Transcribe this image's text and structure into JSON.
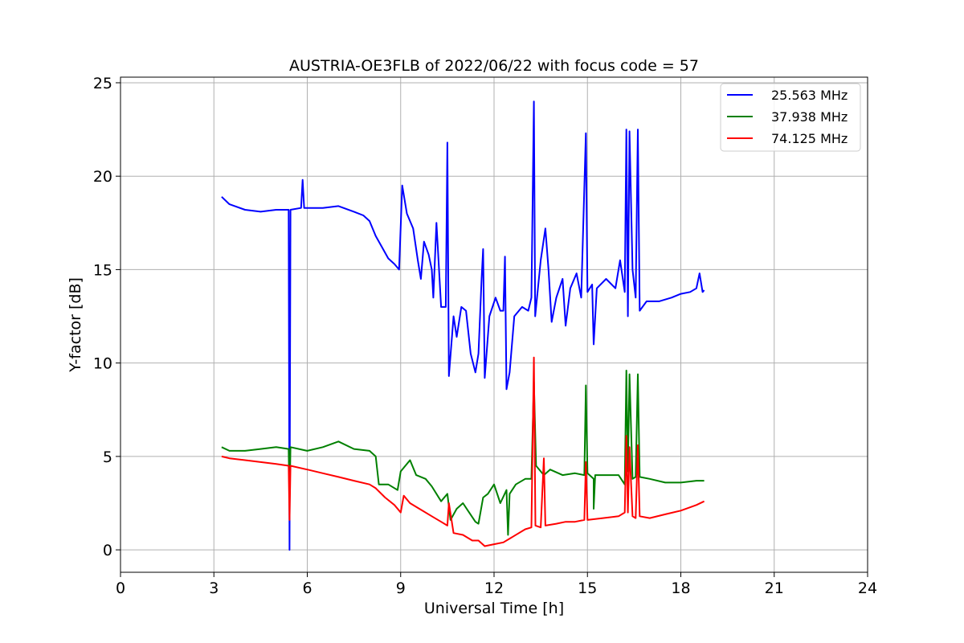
{
  "chart_data": {
    "type": "line",
    "title": "AUSTRIA-OE3FLB of 2022/06/22 with focus code = 57",
    "xlabel": "Universal Time [h]",
    "ylabel": "Y-factor [dB]",
    "xlim": [
      0,
      24
    ],
    "ylim": [
      -1.2,
      25.3
    ],
    "xticks": [
      0,
      3,
      6,
      9,
      12,
      15,
      18,
      21,
      24
    ],
    "yticks": [
      0,
      5,
      10,
      15,
      20,
      25
    ],
    "grid": true,
    "legend_position": "top-right",
    "series": [
      {
        "name": "25.563 MHz",
        "color": "#0000ff",
        "points": [
          [
            3.25,
            18.9
          ],
          [
            3.5,
            18.5
          ],
          [
            4.0,
            18.2
          ],
          [
            4.5,
            18.1
          ],
          [
            5.0,
            18.2
          ],
          [
            5.4,
            18.2
          ],
          [
            5.43,
            0.0
          ],
          [
            5.46,
            18.2
          ],
          [
            5.8,
            18.3
          ],
          [
            5.85,
            19.8
          ],
          [
            5.9,
            18.3
          ],
          [
            6.5,
            18.3
          ],
          [
            7.0,
            18.4
          ],
          [
            7.5,
            18.1
          ],
          [
            7.8,
            17.9
          ],
          [
            8.0,
            17.6
          ],
          [
            8.2,
            16.8
          ],
          [
            8.4,
            16.2
          ],
          [
            8.6,
            15.6
          ],
          [
            8.8,
            15.3
          ],
          [
            8.95,
            15.0
          ],
          [
            9.05,
            19.5
          ],
          [
            9.2,
            18.0
          ],
          [
            9.4,
            17.2
          ],
          [
            9.55,
            15.5
          ],
          [
            9.65,
            14.5
          ],
          [
            9.75,
            16.5
          ],
          [
            9.9,
            15.8
          ],
          [
            10.0,
            15.0
          ],
          [
            10.05,
            13.5
          ],
          [
            10.15,
            17.5
          ],
          [
            10.3,
            13.0
          ],
          [
            10.45,
            13.0
          ],
          [
            10.5,
            21.8
          ],
          [
            10.55,
            9.3
          ],
          [
            10.7,
            12.5
          ],
          [
            10.8,
            11.4
          ],
          [
            10.95,
            13.0
          ],
          [
            11.1,
            12.8
          ],
          [
            11.25,
            10.5
          ],
          [
            11.4,
            9.5
          ],
          [
            11.5,
            10.5
          ],
          [
            11.6,
            14.5
          ],
          [
            11.65,
            16.1
          ],
          [
            11.7,
            9.2
          ],
          [
            11.85,
            12.5
          ],
          [
            12.05,
            13.5
          ],
          [
            12.2,
            12.8
          ],
          [
            12.3,
            12.8
          ],
          [
            12.35,
            15.7
          ],
          [
            12.4,
            8.6
          ],
          [
            12.5,
            9.5
          ],
          [
            12.65,
            12.5
          ],
          [
            12.9,
            13.0
          ],
          [
            13.1,
            12.8
          ],
          [
            13.2,
            13.5
          ],
          [
            13.28,
            24.0
          ],
          [
            13.32,
            12.5
          ],
          [
            13.5,
            15.5
          ],
          [
            13.65,
            17.2
          ],
          [
            13.75,
            15.0
          ],
          [
            13.85,
            12.2
          ],
          [
            14.0,
            13.5
          ],
          [
            14.2,
            14.5
          ],
          [
            14.3,
            12.0
          ],
          [
            14.45,
            14.0
          ],
          [
            14.65,
            14.8
          ],
          [
            14.8,
            13.5
          ],
          [
            14.95,
            22.3
          ],
          [
            15.0,
            13.8
          ],
          [
            15.15,
            14.2
          ],
          [
            15.2,
            11.0
          ],
          [
            15.3,
            14.0
          ],
          [
            15.6,
            14.5
          ],
          [
            15.9,
            14.0
          ],
          [
            16.05,
            15.5
          ],
          [
            16.2,
            13.8
          ],
          [
            16.25,
            22.5
          ],
          [
            16.3,
            12.5
          ],
          [
            16.35,
            22.4
          ],
          [
            16.45,
            15.0
          ],
          [
            16.55,
            13.5
          ],
          [
            16.62,
            22.5
          ],
          [
            16.68,
            12.8
          ],
          [
            16.9,
            13.3
          ],
          [
            17.3,
            13.3
          ],
          [
            17.7,
            13.5
          ],
          [
            18.0,
            13.7
          ],
          [
            18.3,
            13.8
          ],
          [
            18.5,
            14.0
          ],
          [
            18.6,
            14.8
          ],
          [
            18.7,
            13.8
          ],
          [
            18.75,
            13.9
          ]
        ]
      },
      {
        "name": "37.938 MHz",
        "color": "#008000",
        "points": [
          [
            3.25,
            5.5
          ],
          [
            3.5,
            5.3
          ],
          [
            4.0,
            5.3
          ],
          [
            4.5,
            5.4
          ],
          [
            5.0,
            5.5
          ],
          [
            5.4,
            5.4
          ],
          [
            5.43,
            2.5
          ],
          [
            5.46,
            5.5
          ],
          [
            6.0,
            5.3
          ],
          [
            6.5,
            5.5
          ],
          [
            7.0,
            5.8
          ],
          [
            7.5,
            5.4
          ],
          [
            8.0,
            5.3
          ],
          [
            8.2,
            5.0
          ],
          [
            8.3,
            3.5
          ],
          [
            8.6,
            3.5
          ],
          [
            8.9,
            3.2
          ],
          [
            9.0,
            4.2
          ],
          [
            9.3,
            4.8
          ],
          [
            9.5,
            4.0
          ],
          [
            9.8,
            3.8
          ],
          [
            10.0,
            3.4
          ],
          [
            10.3,
            2.6
          ],
          [
            10.5,
            3.0
          ],
          [
            10.6,
            1.6
          ],
          [
            10.8,
            2.2
          ],
          [
            11.0,
            2.5
          ],
          [
            11.2,
            2.0
          ],
          [
            11.4,
            1.5
          ],
          [
            11.5,
            1.4
          ],
          [
            11.65,
            2.8
          ],
          [
            11.8,
            3.0
          ],
          [
            12.0,
            3.5
          ],
          [
            12.2,
            2.5
          ],
          [
            12.4,
            3.2
          ],
          [
            12.45,
            0.8
          ],
          [
            12.5,
            3.0
          ],
          [
            12.7,
            3.5
          ],
          [
            13.0,
            3.8
          ],
          [
            13.2,
            3.8
          ],
          [
            13.28,
            9.0
          ],
          [
            13.35,
            4.5
          ],
          [
            13.6,
            4.0
          ],
          [
            13.8,
            4.3
          ],
          [
            14.2,
            4.0
          ],
          [
            14.6,
            4.1
          ],
          [
            14.9,
            4.0
          ],
          [
            14.95,
            8.8
          ],
          [
            15.0,
            4.1
          ],
          [
            15.2,
            3.8
          ],
          [
            15.2,
            2.2
          ],
          [
            15.25,
            4.0
          ],
          [
            15.6,
            4.0
          ],
          [
            16.0,
            4.0
          ],
          [
            16.2,
            3.5
          ],
          [
            16.25,
            9.6
          ],
          [
            16.3,
            4.2
          ],
          [
            16.35,
            9.4
          ],
          [
            16.45,
            3.8
          ],
          [
            16.55,
            3.9
          ],
          [
            16.62,
            9.4
          ],
          [
            16.68,
            3.9
          ],
          [
            17.0,
            3.8
          ],
          [
            17.5,
            3.6
          ],
          [
            18.0,
            3.6
          ],
          [
            18.5,
            3.7
          ],
          [
            18.75,
            3.7
          ]
        ]
      },
      {
        "name": "74.125 MHz",
        "color": "#ff0000",
        "points": [
          [
            3.25,
            5.0
          ],
          [
            3.5,
            4.9
          ],
          [
            4.0,
            4.8
          ],
          [
            4.5,
            4.7
          ],
          [
            5.0,
            4.6
          ],
          [
            5.4,
            4.5
          ],
          [
            5.43,
            1.6
          ],
          [
            5.46,
            4.5
          ],
          [
            6.0,
            4.3
          ],
          [
            6.5,
            4.1
          ],
          [
            7.0,
            3.9
          ],
          [
            7.5,
            3.7
          ],
          [
            8.0,
            3.5
          ],
          [
            8.2,
            3.3
          ],
          [
            8.5,
            2.8
          ],
          [
            8.8,
            2.4
          ],
          [
            9.0,
            2.0
          ],
          [
            9.1,
            2.9
          ],
          [
            9.3,
            2.5
          ],
          [
            9.6,
            2.2
          ],
          [
            10.0,
            1.8
          ],
          [
            10.3,
            1.5
          ],
          [
            10.5,
            1.3
          ],
          [
            10.55,
            2.5
          ],
          [
            10.7,
            0.9
          ],
          [
            11.0,
            0.8
          ],
          [
            11.3,
            0.5
          ],
          [
            11.5,
            0.5
          ],
          [
            11.7,
            0.2
          ],
          [
            12.0,
            0.3
          ],
          [
            12.3,
            0.4
          ],
          [
            12.6,
            0.7
          ],
          [
            13.0,
            1.1
          ],
          [
            13.2,
            1.2
          ],
          [
            13.28,
            10.3
          ],
          [
            13.33,
            1.3
          ],
          [
            13.5,
            1.2
          ],
          [
            13.6,
            4.9
          ],
          [
            13.65,
            1.3
          ],
          [
            14.0,
            1.4
          ],
          [
            14.3,
            1.5
          ],
          [
            14.6,
            1.5
          ],
          [
            14.9,
            1.6
          ],
          [
            14.95,
            4.7
          ],
          [
            15.0,
            1.6
          ],
          [
            15.5,
            1.7
          ],
          [
            16.0,
            1.8
          ],
          [
            16.2,
            2.0
          ],
          [
            16.25,
            6.1
          ],
          [
            16.3,
            2.0
          ],
          [
            16.35,
            5.5
          ],
          [
            16.45,
            1.8
          ],
          [
            16.55,
            1.7
          ],
          [
            16.62,
            5.6
          ],
          [
            16.68,
            1.8
          ],
          [
            17.0,
            1.7
          ],
          [
            17.5,
            1.9
          ],
          [
            18.0,
            2.1
          ],
          [
            18.5,
            2.4
          ],
          [
            18.75,
            2.6
          ]
        ]
      }
    ]
  }
}
